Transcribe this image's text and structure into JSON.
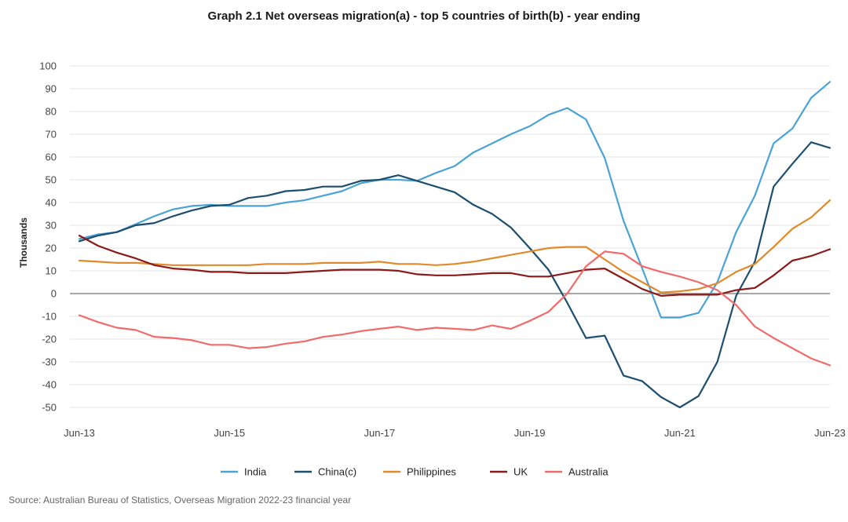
{
  "chart_data": {
    "type": "line",
    "title": "Graph 2.1 Net overseas migration(a) - top 5 countries of birth(b) - year ending",
    "ylabel": "Thousands",
    "xlabel": "",
    "ylim": [
      -50,
      100
    ],
    "yticks": [
      100,
      90,
      80,
      70,
      60,
      50,
      40,
      30,
      20,
      10,
      0,
      -10,
      -20,
      -30,
      -40,
      -50
    ],
    "x": [
      "Jun-13",
      "Sep-13",
      "Dec-13",
      "Mar-14",
      "Jun-14",
      "Sep-14",
      "Dec-14",
      "Mar-15",
      "Jun-15",
      "Sep-15",
      "Dec-15",
      "Mar-16",
      "Jun-16",
      "Sep-16",
      "Dec-16",
      "Mar-17",
      "Jun-17",
      "Sep-17",
      "Dec-17",
      "Mar-18",
      "Jun-18",
      "Sep-18",
      "Dec-18",
      "Mar-19",
      "Jun-19",
      "Sep-19",
      "Dec-19",
      "Mar-20",
      "Jun-20",
      "Sep-20",
      "Dec-20",
      "Mar-21",
      "Jun-21",
      "Sep-21",
      "Dec-21",
      "Mar-22",
      "Jun-22",
      "Sep-22",
      "Dec-22",
      "Mar-23",
      "Jun-23"
    ],
    "xtick_labels": [
      "Jun-13",
      "Jun-15",
      "Jun-17",
      "Jun-19",
      "Jun-21",
      "Jun-23"
    ],
    "grid": true,
    "legend_position": "bottom",
    "series": [
      {
        "name": "India",
        "color": "#4aa3d4",
        "values": [
          24,
          26,
          27,
          30.5,
          34,
          37,
          38.5,
          39,
          38.5,
          38.5,
          38.5,
          40,
          41,
          43,
          45,
          48.5,
          50,
          50,
          49.5,
          53,
          56,
          62,
          66,
          70,
          73.5,
          78.5,
          81.5,
          76.5,
          59.5,
          32,
          11,
          -10.5,
          -10.5,
          -8.5,
          5,
          27,
          43,
          66,
          72.5,
          86,
          93
        ]
      },
      {
        "name": "China(c)",
        "color": "#1d4e6e",
        "values": [
          23,
          25.5,
          27,
          30,
          31,
          34,
          36.5,
          38.5,
          39,
          42,
          43,
          45,
          45.5,
          47,
          47,
          49.5,
          50,
          52,
          49.5,
          47,
          44.5,
          39,
          35,
          29,
          20,
          10.5,
          -4,
          -19.5,
          -18.5,
          -36,
          -38.5,
          -45.5,
          -50,
          -45,
          -30,
          -1,
          14,
          47,
          57,
          66.5,
          64
        ]
      },
      {
        "name": "Philippines",
        "color": "#e08a2b",
        "values": [
          14.5,
          14,
          13.5,
          13.5,
          13,
          12.5,
          12.5,
          12.5,
          12.5,
          12.5,
          13,
          13,
          13,
          13.5,
          13.5,
          13.5,
          14,
          13,
          13,
          12.5,
          13,
          14,
          15.5,
          17,
          18.5,
          20,
          20.5,
          20.5,
          15,
          9.5,
          5,
          0.5,
          1,
          2,
          4.5,
          9.5,
          13,
          20.5,
          28.5,
          33.5,
          41
        ]
      },
      {
        "name": "UK",
        "color": "#8b1a1a",
        "values": [
          25.5,
          21,
          18,
          15.5,
          12.5,
          11,
          10.5,
          9.5,
          9.5,
          9,
          9,
          9,
          9.5,
          10,
          10.5,
          10.5,
          10.5,
          10,
          8.5,
          8,
          8,
          8.5,
          9,
          9,
          7.5,
          7.5,
          9,
          10.5,
          11,
          6.5,
          2,
          -1,
          -0.5,
          -0.5,
          -0.5,
          1.5,
          2.5,
          8,
          14.5,
          16.5,
          19.5
        ]
      },
      {
        "name": "Australia",
        "color": "#f06b6b",
        "values": [
          -9.5,
          -12.5,
          -15,
          -16,
          -19,
          -19.5,
          -20.5,
          -22.5,
          -22.5,
          -24,
          -23.5,
          -22,
          -21,
          -19,
          -18,
          -16.5,
          -15.5,
          -14.5,
          -16,
          -15,
          -15.5,
          -16,
          -14,
          -15.5,
          -12,
          -8,
          0,
          12,
          18.5,
          17.5,
          12,
          9.5,
          7.5,
          5,
          1.5,
          -5,
          -14.5,
          -19.5,
          -24,
          -28.5,
          -31.5
        ]
      }
    ]
  },
  "source": "Source: Australian Bureau of Statistics, Overseas Migration 2022-23 financial year"
}
